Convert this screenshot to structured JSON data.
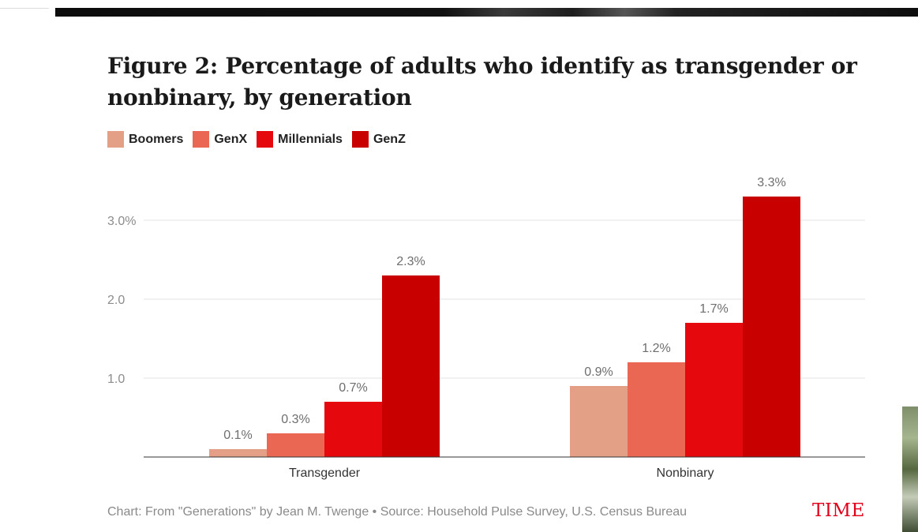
{
  "chart_data": {
    "type": "bar",
    "title": "Figure 2: Percentage of adults who identify as transgender or nonbinary, by generation",
    "categories": [
      "Transgender",
      "Nonbinary"
    ],
    "series": [
      {
        "name": "Boomers",
        "color": "#e4a087",
        "values": [
          0.1,
          0.9
        ],
        "labels": [
          "0.1%",
          "0.9%"
        ]
      },
      {
        "name": "GenX",
        "color": "#ea6753",
        "values": [
          0.3,
          1.2
        ],
        "labels": [
          "0.3%",
          "1.2%"
        ]
      },
      {
        "name": "Millennials",
        "color": "#e5080c",
        "values": [
          0.7,
          1.7
        ],
        "labels": [
          "0.7%",
          "1.7%"
        ]
      },
      {
        "name": "GenZ",
        "color": "#c90000",
        "values": [
          2.3,
          3.3
        ],
        "labels": [
          "2.3%",
          "3.3%"
        ]
      }
    ],
    "yticks": [
      {
        "value": 1,
        "label": "1.0"
      },
      {
        "value": 2,
        "label": "2.0"
      },
      {
        "value": 3,
        "label": "3.0%"
      }
    ],
    "ylim": [
      0,
      3.5
    ],
    "xlabel": "",
    "ylabel": "",
    "grid": true,
    "legend_position": "top-left",
    "source": "Chart: From \"Generations\" by Jean M. Twenge • Source: Household Pulse Survey, U.S. Census Bureau",
    "logo": "TIME"
  }
}
